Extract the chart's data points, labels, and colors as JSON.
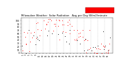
{
  "title": "Milwaukee Weather  Solar Radiation   Avg per Day W/m2/minute",
  "title_fontsize": 2.8,
  "background_color": "#ffffff",
  "ylim": [
    0,
    110
  ],
  "xlim": [
    -1,
    53
  ],
  "ylabel_fontsize": 2.2,
  "xlabel_fontsize": 2.0,
  "yticks": [
    0,
    10,
    20,
    30,
    40,
    50,
    60,
    70,
    80,
    90,
    100
  ],
  "grid_color": "#bbbbbb",
  "dot_color_red": "#ff0000",
  "dot_color_black": "#000000",
  "legend_box_color": "#ff0000",
  "weeks": 52,
  "seed": 42
}
